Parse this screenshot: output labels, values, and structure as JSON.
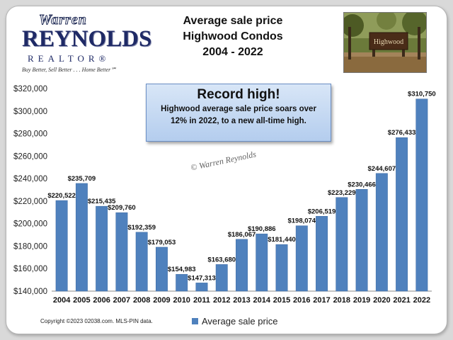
{
  "header": {
    "title_lines": [
      "Average sale price",
      "Highwood Condos",
      "2004 - 2022"
    ]
  },
  "logo": {
    "line1": "Warren",
    "line2": "REYNOLDS",
    "line3": "REALTOR®",
    "tagline": "Buy Better, Sell Better . . . Home Better℠"
  },
  "photo": {
    "sign_text": "Highwood"
  },
  "callout": {
    "heading": "Record high!",
    "line1": "Highwood average sale price soars over",
    "line2": "12% in 2022, to a new all-time high."
  },
  "watermark": "© Warren Reynolds",
  "footer": {
    "copyright": "Copyright ©2023 02038.com. MLS-PIN data."
  },
  "colors": {
    "bar": "#4f81bd",
    "bar_edge": "#3c6aa3"
  },
  "chart_data": {
    "type": "bar",
    "categories": [
      "2004",
      "2005",
      "2006",
      "2007",
      "2008",
      "2009",
      "2010",
      "2011",
      "2012",
      "2013",
      "2014",
      "2015",
      "2016",
      "2017",
      "2018",
      "2019",
      "2020",
      "2021",
      "2022"
    ],
    "series": [
      {
        "name": "Average sale price",
        "values": [
          220522,
          235709,
          215435,
          209760,
          192359,
          179053,
          154983,
          147313,
          163680,
          186067,
          190886,
          181440,
          198074,
          206519,
          223229,
          230466,
          244607,
          276433,
          310750
        ],
        "labels": [
          "$220,522",
          "$235,709",
          "$215,435",
          "$209,760",
          "$192,359",
          "$179,053",
          "$154,983",
          "$147,313",
          "$163,680",
          "$186,067",
          "$190,886",
          "$181,440",
          "$198,074",
          "$206,519",
          "$223,229",
          "$230,466",
          "$244,607",
          "$276,433",
          "$310,750"
        ]
      }
    ],
    "ylim": [
      140000,
      320000
    ],
    "yticks": [
      140000,
      160000,
      180000,
      200000,
      220000,
      240000,
      260000,
      280000,
      300000,
      320000
    ],
    "ytick_labels": [
      "$140,000",
      "$160,000",
      "$180,000",
      "$200,000",
      "$220,000",
      "$240,000",
      "$260,000",
      "$280,000",
      "$300,000",
      "$320,000"
    ],
    "grid": false,
    "legend": "bottom"
  }
}
